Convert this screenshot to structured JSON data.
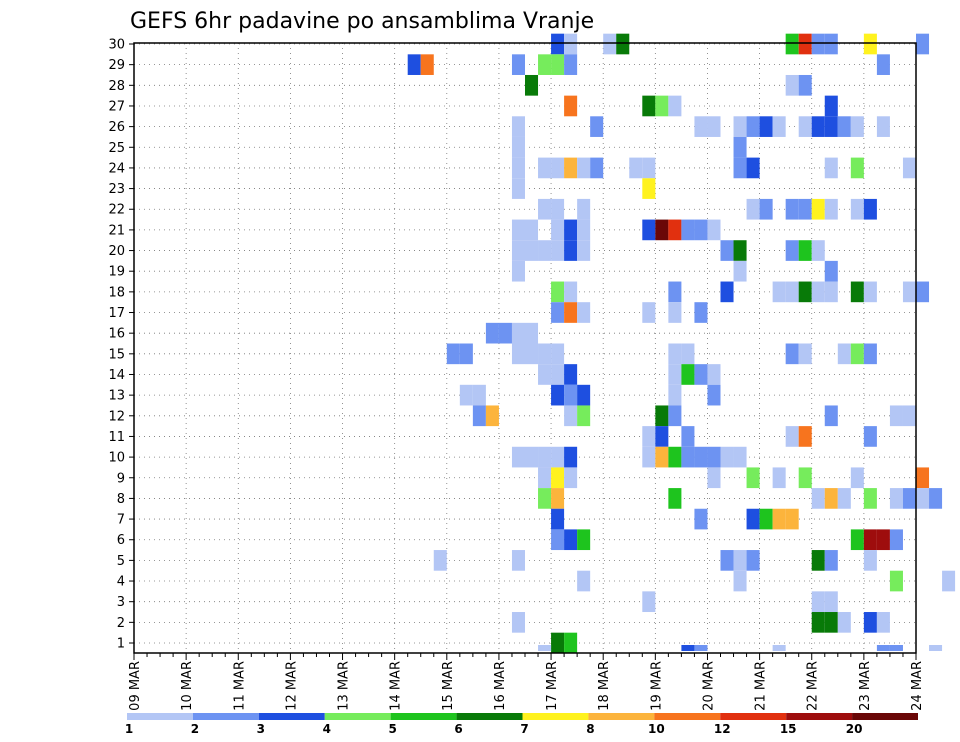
{
  "chart_data": {
    "type": "heatmap",
    "title": "GEFS 6hr padavine po ansamblima Vranje",
    "y_ticks": [
      "1",
      "2",
      "3",
      "4",
      "5",
      "6",
      "7",
      "8",
      "9",
      "10",
      "11",
      "12",
      "13",
      "14",
      "15",
      "16",
      "17",
      "18",
      "19",
      "20",
      "21",
      "22",
      "23",
      "24",
      "25",
      "26",
      "27",
      "28",
      "29",
      "30"
    ],
    "x_ticks": [
      "09 MAR",
      "10 MAR",
      "11 MAR",
      "12 MAR",
      "13 MAR",
      "14 MAR",
      "15 MAR",
      "16 MAR",
      "17 MAR",
      "18 MAR",
      "19 MAR",
      "20 MAR",
      "21 MAR",
      "22 MAR",
      "23 MAR",
      "24 MAR"
    ],
    "ylim": [
      0,
      30
    ],
    "grid": true,
    "x_units": "6-hour steps from 09 MAR",
    "colorbar": {
      "labels": [
        "1",
        "2",
        "3",
        "4",
        "5",
        "6",
        "7",
        "8",
        "10",
        "12",
        "15",
        "20"
      ],
      "colors": [
        "#b3c6f5",
        "#6d93f2",
        "#1e4fe0",
        "#76ec5c",
        "#1ec41e",
        "#087a08",
        "#fff21e",
        "#fcb43c",
        "#f7741e",
        "#e1300f",
        "#9e0d0d",
        "#6a0707"
      ]
    },
    "cells": [
      [
        32,
        30,
        3
      ],
      [
        33,
        30,
        1
      ],
      [
        36,
        30,
        1
      ],
      [
        37,
        30,
        6
      ],
      [
        50,
        30,
        5
      ],
      [
        51,
        30,
        10
      ],
      [
        52,
        30,
        2
      ],
      [
        53,
        30,
        2
      ],
      [
        56,
        30,
        7
      ],
      [
        60,
        30,
        2
      ],
      [
        21,
        29,
        3
      ],
      [
        22,
        29,
        9
      ],
      [
        29,
        29,
        2
      ],
      [
        31,
        29,
        4
      ],
      [
        32,
        29,
        4
      ],
      [
        33,
        29,
        2
      ],
      [
        57,
        29,
        2
      ],
      [
        30,
        28,
        6
      ],
      [
        50,
        28,
        1
      ],
      [
        51,
        28,
        2
      ],
      [
        33,
        27,
        9
      ],
      [
        53,
        27,
        3
      ],
      [
        39,
        27,
        6
      ],
      [
        40,
        27,
        4
      ],
      [
        41,
        27,
        1
      ],
      [
        29,
        26,
        1
      ],
      [
        35,
        26,
        2
      ],
      [
        43,
        26,
        1
      ],
      [
        44,
        26,
        1
      ],
      [
        46,
        26,
        1
      ],
      [
        47,
        26,
        2
      ],
      [
        48,
        26,
        3
      ],
      [
        49,
        26,
        1
      ],
      [
        51,
        26,
        1
      ],
      [
        52,
        26,
        3
      ],
      [
        53,
        26,
        3
      ],
      [
        54,
        26,
        2
      ],
      [
        55,
        26,
        1
      ],
      [
        57,
        26,
        1
      ],
      [
        29,
        25,
        1
      ],
      [
        46,
        25,
        2
      ],
      [
        29,
        24,
        1
      ],
      [
        31,
        24,
        1
      ],
      [
        32,
        24,
        1
      ],
      [
        33,
        24,
        8
      ],
      [
        34,
        24,
        1
      ],
      [
        35,
        24,
        2
      ],
      [
        38,
        24,
        1
      ],
      [
        39,
        24,
        1
      ],
      [
        46,
        24,
        2
      ],
      [
        47,
        24,
        3
      ],
      [
        53,
        24,
        1
      ],
      [
        55,
        24,
        4
      ],
      [
        59,
        24,
        1
      ],
      [
        29,
        23,
        1
      ],
      [
        39,
        23,
        7
      ],
      [
        31,
        22,
        1
      ],
      [
        32,
        22,
        1
      ],
      [
        34,
        22,
        1
      ],
      [
        47,
        22,
        1
      ],
      [
        48,
        22,
        2
      ],
      [
        50,
        22,
        2
      ],
      [
        51,
        22,
        2
      ],
      [
        52,
        22,
        7
      ],
      [
        53,
        22,
        1
      ],
      [
        55,
        22,
        1
      ],
      [
        56,
        22,
        3
      ],
      [
        29,
        21,
        1
      ],
      [
        30,
        21,
        1
      ],
      [
        32,
        21,
        1
      ],
      [
        33,
        21,
        3
      ],
      [
        34,
        21,
        1
      ],
      [
        39,
        21,
        3
      ],
      [
        40,
        21,
        12
      ],
      [
        41,
        21,
        10
      ],
      [
        42,
        21,
        2
      ],
      [
        43,
        21,
        2
      ],
      [
        44,
        21,
        1
      ],
      [
        29,
        20,
        1
      ],
      [
        30,
        20,
        1
      ],
      [
        31,
        20,
        1
      ],
      [
        32,
        20,
        1
      ],
      [
        33,
        20,
        3
      ],
      [
        34,
        20,
        1
      ],
      [
        45,
        20,
        2
      ],
      [
        46,
        20,
        6
      ],
      [
        50,
        20,
        2
      ],
      [
        51,
        20,
        5
      ],
      [
        52,
        20,
        1
      ],
      [
        29,
        19,
        1
      ],
      [
        46,
        19,
        1
      ],
      [
        53,
        19,
        2
      ],
      [
        32,
        18,
        4
      ],
      [
        33,
        18,
        1
      ],
      [
        41,
        18,
        2
      ],
      [
        45,
        18,
        3
      ],
      [
        49,
        18,
        1
      ],
      [
        50,
        18,
        1
      ],
      [
        51,
        18,
        6
      ],
      [
        52,
        18,
        1
      ],
      [
        53,
        18,
        1
      ],
      [
        55,
        18,
        6
      ],
      [
        56,
        18,
        1
      ],
      [
        59,
        18,
        1
      ],
      [
        60,
        18,
        2
      ],
      [
        32,
        17,
        2
      ],
      [
        33,
        17,
        9
      ],
      [
        34,
        17,
        1
      ],
      [
        39,
        17,
        1
      ],
      [
        41,
        17,
        1
      ],
      [
        43,
        17,
        2
      ],
      [
        27,
        16,
        2
      ],
      [
        28,
        16,
        2
      ],
      [
        29,
        16,
        1
      ],
      [
        30,
        16,
        1
      ],
      [
        24,
        15,
        2
      ],
      [
        25,
        15,
        2
      ],
      [
        29,
        15,
        1
      ],
      [
        30,
        15,
        1
      ],
      [
        31,
        15,
        1
      ],
      [
        32,
        15,
        1
      ],
      [
        41,
        15,
        1
      ],
      [
        42,
        15,
        1
      ],
      [
        50,
        15,
        2
      ],
      [
        51,
        15,
        1
      ],
      [
        54,
        15,
        1
      ],
      [
        55,
        15,
        4
      ],
      [
        56,
        15,
        2
      ],
      [
        31,
        14,
        1
      ],
      [
        32,
        14,
        1
      ],
      [
        33,
        14,
        3
      ],
      [
        41,
        14,
        1
      ],
      [
        42,
        14,
        5
      ],
      [
        43,
        14,
        2
      ],
      [
        44,
        14,
        1
      ],
      [
        25,
        13,
        1
      ],
      [
        26,
        13,
        1
      ],
      [
        32,
        13,
        3
      ],
      [
        33,
        13,
        2
      ],
      [
        34,
        13,
        3
      ],
      [
        41,
        13,
        1
      ],
      [
        44,
        13,
        2
      ],
      [
        26,
        12,
        2
      ],
      [
        27,
        12,
        8
      ],
      [
        33,
        12,
        1
      ],
      [
        34,
        12,
        4
      ],
      [
        40,
        12,
        6
      ],
      [
        41,
        12,
        2
      ],
      [
        53,
        12,
        2
      ],
      [
        58,
        12,
        1
      ],
      [
        59,
        12,
        1
      ],
      [
        39,
        11,
        1
      ],
      [
        40,
        11,
        3
      ],
      [
        42,
        11,
        2
      ],
      [
        50,
        11,
        1
      ],
      [
        51,
        11,
        9
      ],
      [
        56,
        11,
        2
      ],
      [
        29,
        10,
        1
      ],
      [
        30,
        10,
        1
      ],
      [
        31,
        10,
        1
      ],
      [
        32,
        10,
        1
      ],
      [
        33,
        10,
        3
      ],
      [
        39,
        10,
        1
      ],
      [
        40,
        10,
        8
      ],
      [
        41,
        10,
        5
      ],
      [
        42,
        10,
        2
      ],
      [
        43,
        10,
        2
      ],
      [
        44,
        10,
        2
      ],
      [
        45,
        10,
        1
      ],
      [
        46,
        10,
        1
      ],
      [
        31,
        9,
        1
      ],
      [
        32,
        9,
        7
      ],
      [
        33,
        9,
        1
      ],
      [
        44,
        9,
        1
      ],
      [
        47,
        9,
        4
      ],
      [
        49,
        9,
        1
      ],
      [
        51,
        9,
        4
      ],
      [
        55,
        9,
        1
      ],
      [
        60,
        9,
        9
      ],
      [
        31,
        8,
        4
      ],
      [
        32,
        8,
        8
      ],
      [
        41,
        8,
        5
      ],
      [
        52,
        8,
        1
      ],
      [
        53,
        8,
        8
      ],
      [
        54,
        8,
        1
      ],
      [
        56,
        8,
        4
      ],
      [
        58,
        8,
        1
      ],
      [
        59,
        8,
        2
      ],
      [
        60,
        8,
        1
      ],
      [
        61,
        8,
        2
      ],
      [
        32,
        7,
        3
      ],
      [
        43,
        7,
        2
      ],
      [
        47,
        7,
        3
      ],
      [
        48,
        7,
        5
      ],
      [
        49,
        7,
        8
      ],
      [
        50,
        7,
        8
      ],
      [
        32,
        6,
        2
      ],
      [
        33,
        6,
        3
      ],
      [
        34,
        6,
        5
      ],
      [
        55,
        6,
        5
      ],
      [
        56,
        6,
        11
      ],
      [
        57,
        6,
        11
      ],
      [
        58,
        6,
        2
      ],
      [
        23,
        5,
        1
      ],
      [
        29,
        5,
        1
      ],
      [
        45,
        5,
        2
      ],
      [
        46,
        5,
        1
      ],
      [
        47,
        5,
        2
      ],
      [
        52,
        5,
        6
      ],
      [
        53,
        5,
        2
      ],
      [
        56,
        5,
        1
      ],
      [
        34,
        4,
        1
      ],
      [
        46,
        4,
        1
      ],
      [
        58,
        4,
        4
      ],
      [
        62,
        4,
        1
      ],
      [
        39,
        3,
        1
      ],
      [
        52,
        3,
        1
      ],
      [
        53,
        3,
        1
      ],
      [
        29,
        2,
        1
      ],
      [
        52,
        2,
        6
      ],
      [
        53,
        2,
        6
      ],
      [
        54,
        2,
        1
      ],
      [
        56,
        2,
        3
      ],
      [
        57,
        2,
        1
      ],
      [
        32,
        1,
        6
      ],
      [
        33,
        1,
        5
      ],
      [
        31,
        0,
        1
      ],
      [
        42,
        0,
        3
      ],
      [
        43,
        0,
        2
      ],
      [
        49,
        0,
        1
      ],
      [
        57,
        0,
        2
      ],
      [
        58,
        0,
        2
      ],
      [
        61,
        0,
        1
      ]
    ]
  }
}
